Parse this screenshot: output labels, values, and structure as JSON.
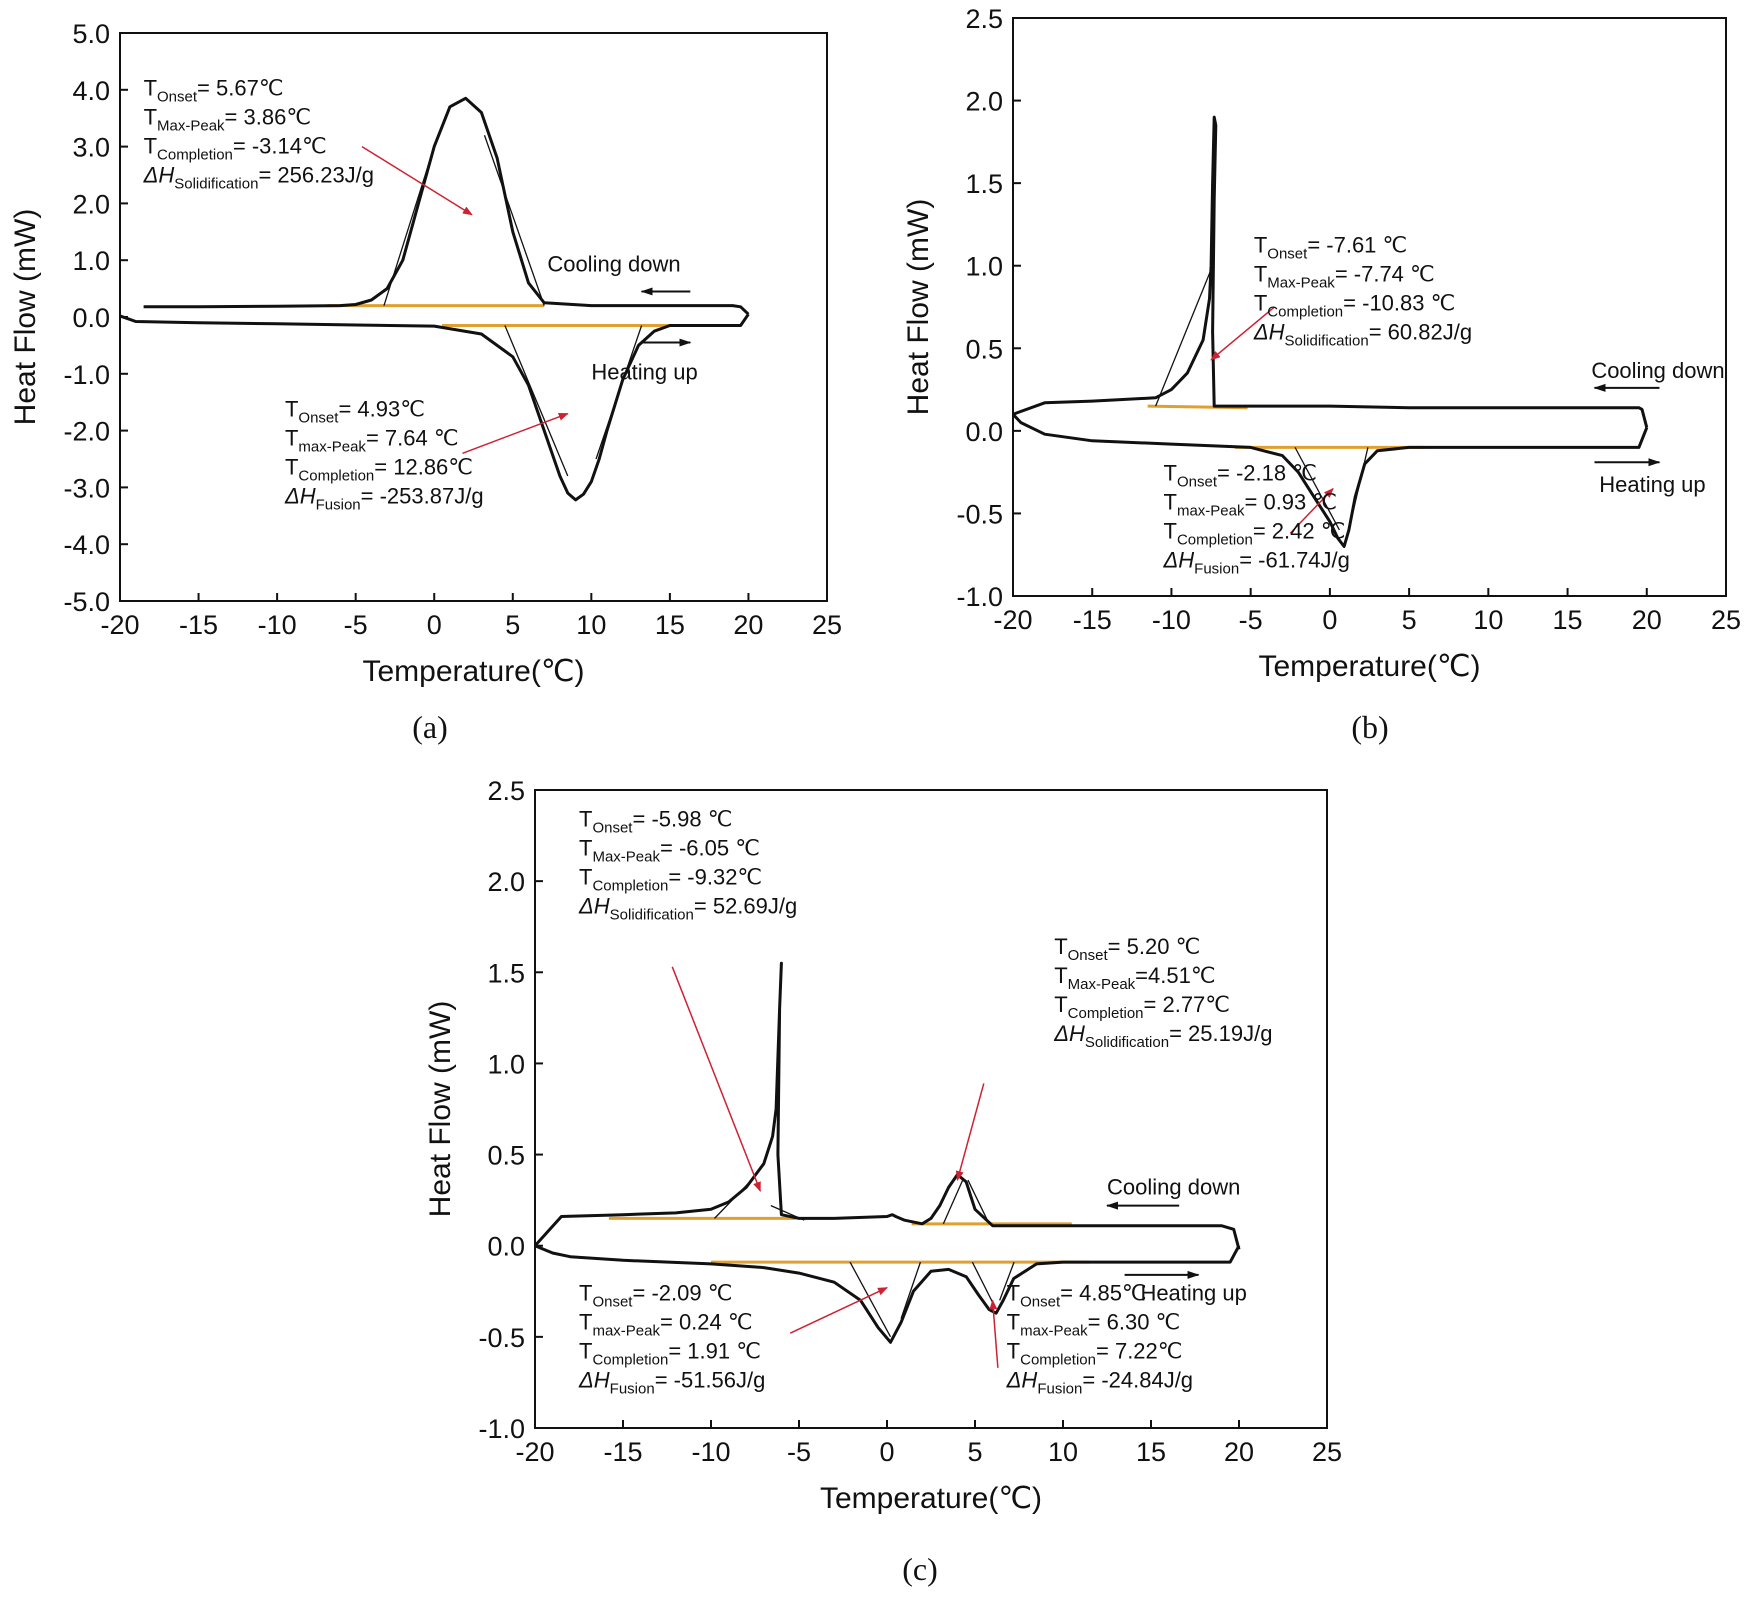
{
  "colors": {
    "curve": "#111111",
    "baseline": "#e0a030",
    "arrow": "#cc2233",
    "frame": "#111111"
  },
  "chart_data": [
    {
      "id": "a",
      "type": "line",
      "panel_label": "(a)",
      "xlabel": "Temperature(℃)",
      "ylabel": "Heat Flow (mW)",
      "xlim": [
        -20,
        25
      ],
      "ylim": [
        -5,
        5
      ],
      "xticks": [
        "-20",
        "-15",
        "-10",
        "-5",
        "0",
        "5",
        "10",
        "15",
        "20",
        "25"
      ],
      "yticks": [
        "5.0",
        "4.0",
        "3.0",
        "2.0",
        "1.0",
        "0.0",
        "-1.0",
        "-2.0",
        "-3.0",
        "-4.0",
        "-5.0"
      ],
      "series": [
        {
          "name": "Cooling down",
          "x": [
            20,
            19.5,
            19,
            15,
            10,
            7,
            6,
            5,
            4,
            3,
            2,
            1,
            0,
            -1,
            -2,
            -3,
            -4,
            -5,
            -6,
            -10,
            -15,
            -18.5
          ],
          "y": [
            0.05,
            0.18,
            0.2,
            0.2,
            0.2,
            0.25,
            0.6,
            1.5,
            2.8,
            3.6,
            3.85,
            3.7,
            3.0,
            2.0,
            1.0,
            0.5,
            0.3,
            0.22,
            0.2,
            0.19,
            0.18,
            0.18
          ]
        },
        {
          "name": "Heating up",
          "x": [
            -20,
            -19,
            -15,
            -10,
            -5,
            0,
            3,
            5,
            6,
            7,
            8,
            8.5,
            9,
            9.5,
            10,
            10.5,
            11,
            12,
            13,
            14,
            15,
            16,
            18,
            19.5,
            20
          ],
          "y": [
            0.02,
            -0.08,
            -0.1,
            -0.12,
            -0.14,
            -0.16,
            -0.3,
            -0.7,
            -1.2,
            -2.0,
            -2.8,
            -3.1,
            -3.22,
            -3.12,
            -2.9,
            -2.5,
            -2.0,
            -1.1,
            -0.5,
            -0.25,
            -0.15,
            -0.15,
            -0.15,
            -0.15,
            0.05
          ]
        }
      ],
      "baselines": [
        {
          "x": [
            -6.8,
            7
          ],
          "y": [
            0.2,
            0.2
          ]
        },
        {
          "x": [
            0.5,
            16
          ],
          "y": [
            -0.15,
            -0.15
          ]
        }
      ],
      "tangents": [
        {
          "x": [
            -3.2,
            0
          ],
          "y": [
            0.2,
            3.0
          ]
        },
        {
          "x": [
            7,
            3.2
          ],
          "y": [
            0.2,
            3.2
          ]
        },
        {
          "x": [
            4.5,
            8.5
          ],
          "y": [
            -0.15,
            -2.8
          ]
        },
        {
          "x": [
            13.2,
            10.3
          ],
          "y": [
            -0.15,
            -2.5
          ]
        }
      ],
      "arrows": [
        {
          "from": [
            -4.6,
            3.0
          ],
          "to": [
            2.4,
            1.8
          ]
        },
        {
          "from": [
            1.8,
            -2.4
          ],
          "to": [
            8.5,
            -1.7
          ]
        }
      ],
      "direction_arrows": [
        {
          "from": [
            16.3,
            0.45
          ],
          "to": [
            13.2,
            0.45
          ]
        },
        {
          "from": [
            13.3,
            -0.45
          ],
          "to": [
            16.3,
            -0.45
          ]
        }
      ],
      "annotations": [
        {
          "label": "Cooling down",
          "x": 7.2,
          "y": 0.8
        },
        {
          "label": "Heating up",
          "x": 10,
          "y": -1.1
        },
        {
          "x": -18.5,
          "y": 3.9,
          "lines": [
            {
              "sym": "T",
              "sub": "Onset",
              "text": "= 5.67℃"
            },
            {
              "sym": "T",
              "sub": "Max-Peak",
              "text": "= 3.86℃"
            },
            {
              "sym": "T",
              "sub": "Completion",
              "text": "= -3.14℃"
            },
            {
              "sym": "ΔH",
              "sub": "Solidification",
              "text": "= 256.23J/g"
            }
          ]
        },
        {
          "x": -9.5,
          "y": -1.75,
          "lines": [
            {
              "sym": "T",
              "sub": "Onset",
              "text": "= 4.93℃"
            },
            {
              "sym": "T",
              "sub": "max-Peak",
              "text": "= 7.64 ℃"
            },
            {
              "sym": "T",
              "sub": "Completion",
              "text": "= 12.86℃"
            },
            {
              "sym": "ΔH",
              "sub": "Fusion",
              "text": "= -253.87J/g"
            }
          ]
        }
      ]
    },
    {
      "id": "b",
      "type": "line",
      "panel_label": "(b)",
      "xlabel": "Temperature(℃)",
      "ylabel": "Heat Flow (mW)",
      "xlim": [
        -20,
        25
      ],
      "ylim": [
        -1,
        2.5
      ],
      "xticks": [
        "-20",
        "-15",
        "-10",
        "-5",
        "0",
        "5",
        "10",
        "15",
        "20",
        "25"
      ],
      "yticks": [
        "2.5",
        "2.0",
        "1.5",
        "1.0",
        "0.5",
        "0.0",
        "-0.5",
        "-1.0"
      ],
      "series": [
        {
          "name": "Cooling down",
          "x": [
            20,
            19.7,
            19.5,
            15,
            10,
            5,
            0,
            -5,
            -7.3,
            -7.4,
            -7.3,
            -7.2,
            -7.3,
            -7.4,
            -7.5,
            -7.6,
            -8,
            -9,
            -10,
            -11,
            -15,
            -18,
            -20
          ],
          "y": [
            0.02,
            0.13,
            0.14,
            0.14,
            0.14,
            0.14,
            0.15,
            0.15,
            0.15,
            0.6,
            1.4,
            1.85,
            1.9,
            1.5,
            1.0,
            0.8,
            0.55,
            0.35,
            0.25,
            0.2,
            0.18,
            0.17,
            0.1
          ]
        },
        {
          "name": "Heating up",
          "x": [
            -20,
            -19.5,
            -18,
            -15,
            -10,
            -5,
            -3,
            -2,
            -1,
            0,
            0.5,
            0.9,
            1.2,
            1.6,
            2.2,
            3,
            5,
            10,
            15,
            19.5,
            20
          ],
          "y": [
            0.1,
            0.05,
            -0.02,
            -0.06,
            -0.08,
            -0.1,
            -0.15,
            -0.25,
            -0.4,
            -0.55,
            -0.65,
            -0.7,
            -0.6,
            -0.4,
            -0.2,
            -0.12,
            -0.1,
            -0.1,
            -0.1,
            -0.1,
            0.02
          ]
        }
      ],
      "baselines": [
        {
          "x": [
            -11.5,
            -5.2
          ],
          "y": [
            0.15,
            0.14
          ]
        },
        {
          "x": [
            -6,
            6
          ],
          "y": [
            -0.1,
            -0.1
          ]
        }
      ],
      "tangents": [
        {
          "x": [
            -11,
            -7.4
          ],
          "y": [
            0.15,
            1.0
          ]
        },
        {
          "x": [
            -2.2,
            0.6
          ],
          "y": [
            -0.1,
            -0.6
          ]
        },
        {
          "x": [
            2.4,
            1.2
          ],
          "y": [
            -0.1,
            -0.6
          ]
        }
      ],
      "arrows": [
        {
          "from": [
            -3.5,
            0.75
          ],
          "to": [
            -7.5,
            0.43
          ]
        },
        {
          "from": [
            -2.5,
            -0.62
          ],
          "to": [
            0.2,
            -0.35
          ]
        }
      ],
      "direction_arrows": [
        {
          "from": [
            20.8,
            0.26
          ],
          "to": [
            16.7,
            0.26
          ]
        },
        {
          "from": [
            16.7,
            -0.19
          ],
          "to": [
            20.8,
            -0.19
          ]
        }
      ],
      "annotations": [
        {
          "label": "Cooling down",
          "x": 16.5,
          "y": 0.32
        },
        {
          "label": "Heating up",
          "x": 17,
          "y": -0.37
        },
        {
          "x": -4.8,
          "y": 1.08,
          "lines": [
            {
              "sym": "T",
              "sub": "Onset",
              "text": "= -7.61 ℃"
            },
            {
              "sym": "T",
              "sub": "Max-Peak",
              "text": "= -7.74 ℃"
            },
            {
              "sym": "T",
              "sub": "Completion",
              "text": "= -10.83 ℃"
            },
            {
              "sym": "ΔH",
              "sub": "Solidification",
              "text": "= 60.82J/g"
            }
          ]
        },
        {
          "x": -10.5,
          "y": -0.3,
          "lines": [
            {
              "sym": "T",
              "sub": "Onset",
              "text": "= -2.18 ℃"
            },
            {
              "sym": "T",
              "sub": "max-Peak",
              "text": "= 0.93 ℃"
            },
            {
              "sym": "T",
              "sub": "Completion",
              "text": "= 2.42 ℃"
            },
            {
              "sym": "ΔH",
              "sub": "Fusion",
              "text": "= -61.74J/g"
            }
          ]
        }
      ]
    },
    {
      "id": "c",
      "type": "line",
      "panel_label": "(c)",
      "xlabel": "Temperature(℃)",
      "ylabel": "Heat Flow (mW)",
      "xlim": [
        -20,
        25
      ],
      "ylim": [
        -1,
        2.5
      ],
      "xticks": [
        "-20",
        "-15",
        "-10",
        "-5",
        "0",
        "5",
        "10",
        "15",
        "20",
        "25"
      ],
      "yticks": [
        "2.5",
        "2.0",
        "1.5",
        "1.0",
        "0.5",
        "0.0",
        "-0.5",
        "-1.0"
      ],
      "series": [
        {
          "name": "Cooling down",
          "x": [
            20,
            19.7,
            19,
            15,
            10,
            7,
            6,
            5,
            4.5,
            4,
            3.5,
            3,
            2.5,
            2,
            1,
            0.5,
            0.3,
            0,
            -3,
            -5,
            -6,
            -6.2,
            -6.1,
            -6.0,
            -6.1,
            -6.3,
            -6.5,
            -7,
            -8,
            -9,
            -10,
            -12,
            -15,
            -18.5,
            -20
          ],
          "y": [
            -0.02,
            0.09,
            0.11,
            0.11,
            0.11,
            0.11,
            0.11,
            0.2,
            0.35,
            0.39,
            0.32,
            0.22,
            0.15,
            0.12,
            0.14,
            0.16,
            0.17,
            0.16,
            0.15,
            0.15,
            0.17,
            0.5,
            1.3,
            1.55,
            1.3,
            0.75,
            0.6,
            0.45,
            0.32,
            0.24,
            0.2,
            0.18,
            0.17,
            0.16,
            0.0
          ]
        },
        {
          "name": "Heating up",
          "x": [
            -20,
            -19,
            -18,
            -15,
            -10,
            -7,
            -5,
            -3,
            -1.5,
            -0.5,
            0.2,
            0.8,
            1.5,
            2.5,
            3.5,
            4.5,
            5.2,
            5.8,
            6.2,
            6.6,
            7.2,
            8.5,
            10,
            15,
            19.5,
            20
          ],
          "y": [
            0.0,
            -0.04,
            -0.06,
            -0.08,
            -0.1,
            -0.12,
            -0.15,
            -0.2,
            -0.3,
            -0.45,
            -0.53,
            -0.42,
            -0.25,
            -0.14,
            -0.13,
            -0.17,
            -0.27,
            -0.35,
            -0.37,
            -0.3,
            -0.18,
            -0.1,
            -0.09,
            -0.09,
            -0.09,
            0.0
          ]
        }
      ],
      "baselines": [
        {
          "x": [
            -15.8,
            -5.2
          ],
          "y": [
            0.15,
            0.15
          ]
        },
        {
          "x": [
            1.4,
            10.5
          ],
          "y": [
            0.12,
            0.12
          ]
        },
        {
          "x": [
            -10,
            11.5
          ],
          "y": [
            -0.09,
            -0.09
          ]
        }
      ],
      "tangents": [
        {
          "x": [
            -9.8,
            -7.8
          ],
          "y": [
            0.15,
            0.35
          ]
        },
        {
          "x": [
            -6.6,
            -4.7
          ],
          "y": [
            0.22,
            0.14
          ]
        },
        {
          "x": [
            3.2,
            4.3
          ],
          "y": [
            0.12,
            0.36
          ]
        },
        {
          "x": [
            5.8,
            4.6
          ],
          "y": [
            0.12,
            0.36
          ]
        },
        {
          "x": [
            -2.1,
            0.2
          ],
          "y": [
            -0.09,
            -0.5
          ]
        },
        {
          "x": [
            1.9,
            0.8
          ],
          "y": [
            -0.09,
            -0.4
          ]
        },
        {
          "x": [
            4.85,
            6.1
          ],
          "y": [
            -0.09,
            -0.33
          ]
        },
        {
          "x": [
            7.22,
            6.4
          ],
          "y": [
            -0.09,
            -0.3
          ]
        }
      ],
      "arrows": [
        {
          "from": [
            -12.2,
            1.53
          ],
          "to": [
            -7.2,
            0.3
          ]
        },
        {
          "from": [
            5.5,
            0.89
          ],
          "to": [
            4.0,
            0.36
          ]
        },
        {
          "from": [
            -5.5,
            -0.48
          ],
          "to": [
            0,
            -0.23
          ]
        },
        {
          "from": [
            6.3,
            -0.67
          ],
          "to": [
            6.0,
            -0.3
          ]
        }
      ],
      "direction_arrows": [
        {
          "from": [
            16.6,
            0.22
          ],
          "to": [
            12.5,
            0.22
          ]
        },
        {
          "from": [
            13.5,
            -0.16
          ],
          "to": [
            17.7,
            -0.16
          ]
        }
      ],
      "annotations": [
        {
          "label": "Cooling down",
          "x": 12.5,
          "y": 0.28
        },
        {
          "label": "Heating up",
          "x": 14.4,
          "y": -0.3
        },
        {
          "x": -17.5,
          "y": 2.3,
          "lines": [
            {
              "sym": "T",
              "sub": "Onset",
              "text": "= -5.98 ℃"
            },
            {
              "sym": "T",
              "sub": "Max-Peak",
              "text": "= -6.05 ℃"
            },
            {
              "sym": "T",
              "sub": "Completion",
              "text": "= -9.32℃"
            },
            {
              "sym": "ΔH",
              "sub": "Solidification",
              "text": "= 52.69J/g"
            }
          ]
        },
        {
          "x": 9.5,
          "y": 1.6,
          "lines": [
            {
              "sym": "T",
              "sub": "Onset",
              "text": "= 5.20 ℃"
            },
            {
              "sym": "T",
              "sub": "Max-Peak",
              "text": "=4.51℃"
            },
            {
              "sym": "T",
              "sub": "Completion",
              "text": "= 2.77℃"
            },
            {
              "sym": "ΔH",
              "sub": "Solidification",
              "text": "= 25.19J/g"
            }
          ]
        },
        {
          "x": -17.5,
          "y": -0.3,
          "lines": [
            {
              "sym": "T",
              "sub": "Onset",
              "text": "= -2.09 ℃"
            },
            {
              "sym": "T",
              "sub": "max-Peak",
              "text": "= 0.24 ℃"
            },
            {
              "sym": "T",
              "sub": "Completion",
              "text": "= 1.91 ℃"
            },
            {
              "sym": "ΔH",
              "sub": "Fusion",
              "text": "= -51.56J/g"
            }
          ]
        },
        {
          "x": 6.8,
          "y": -0.3,
          "lines": [
            {
              "sym": "T",
              "sub": "Onset",
              "text": "= 4.85℃"
            },
            {
              "sym": "T",
              "sub": "max-Peak",
              "text": "= 6.30 ℃"
            },
            {
              "sym": "T",
              "sub": "Completion",
              "text": "= 7.22℃"
            },
            {
              "sym": "ΔH",
              "sub": "Fusion",
              "text": "= -24.84J/g"
            }
          ]
        }
      ]
    }
  ]
}
